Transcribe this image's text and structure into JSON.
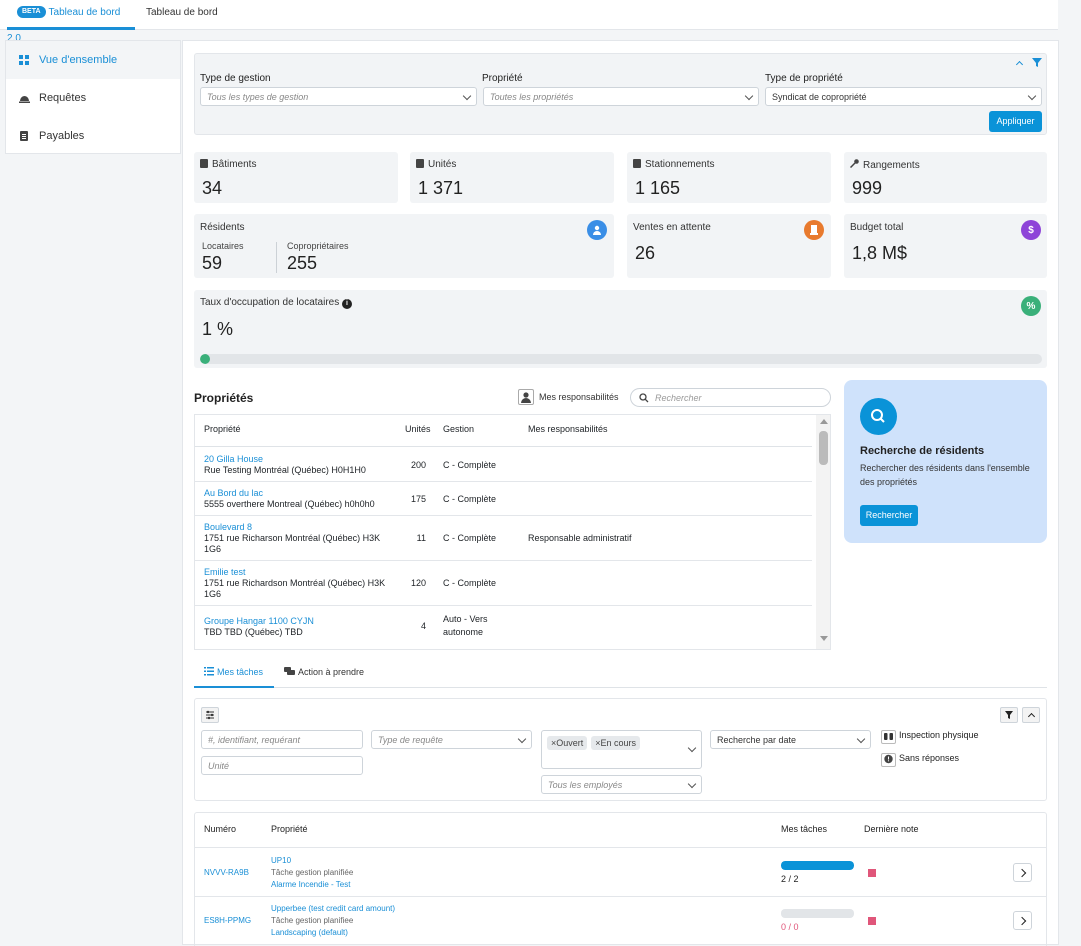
{
  "tabs": [
    {
      "badge": "BETA",
      "label": "Tableau de bord 2.0"
    },
    {
      "label": "Tableau de bord"
    }
  ],
  "sidebar": {
    "items": [
      {
        "label": "Vue d'ensemble",
        "icon": "grid-icon"
      },
      {
        "label": "Requêtes",
        "icon": "bell-icon"
      },
      {
        "label": "Payables",
        "icon": "document-icon"
      }
    ]
  },
  "filters": {
    "gestion_label": "Type de gestion",
    "gestion_placeholder": "Tous les types de gestion",
    "propriete_label": "Propriété",
    "propriete_placeholder": "Toutes les propriétés",
    "type_label": "Type de propriété",
    "type_value": "Syndicat de copropriété",
    "apply_label": "Appliquer"
  },
  "stats": {
    "batiments": {
      "label": "Bâtiments",
      "value": "34"
    },
    "unites": {
      "label": "Unités",
      "value": "1 371"
    },
    "stationnements": {
      "label": "Stationnements",
      "value": "1 165"
    },
    "rangements": {
      "label": "Rangements",
      "value": "999"
    },
    "residents": {
      "label": "Résidents",
      "locataires_label": "Locataires",
      "locataires_value": "59",
      "coproprietaires_label": "Copropriétaires",
      "coproprietaires_value": "255"
    },
    "ventes": {
      "label": "Ventes en attente",
      "value": "26"
    },
    "budget": {
      "label": "Budget total",
      "value": "1,8 M$",
      "icon_text": "$"
    },
    "taux": {
      "label": "Taux d'occupation de locataires",
      "value": "1 %",
      "icon_text": "%",
      "progress": 1
    }
  },
  "proprietes": {
    "title": "Propriétés",
    "mes_resp_label": "Mes responsabilités",
    "search_placeholder": "Rechercher",
    "columns": [
      "Propriété",
      "Unités",
      "Gestion",
      "Mes responsabilités"
    ],
    "rows": [
      {
        "name": "20 Gilla House",
        "address": "Rue Testing Montréal (Québec) H0H1H0",
        "unites": "200",
        "gestion": "C - Complète",
        "resp": ""
      },
      {
        "name": "Au Bord du lac",
        "address": "5555 overthere Montreal (Québec) h0h0h0",
        "unites": "175",
        "gestion": "C - Complète",
        "resp": ""
      },
      {
        "name": "Boulevard 8",
        "address": "1751 rue Richarson Montréal (Québec) H3K 1G6",
        "unites": "11",
        "gestion": "C - Complète",
        "resp": "Responsable administratif"
      },
      {
        "name": "Emilie test",
        "address": "1751 rue Richardson Montréal (Québec) H3K 1G6",
        "unites": "120",
        "gestion": "C - Complète",
        "resp": ""
      },
      {
        "name": "Groupe Hangar 1100 CYJN",
        "address": "TBD TBD (Québec) TBD",
        "unites": "4",
        "gestion": "Auto - Vers autonome",
        "resp": ""
      }
    ]
  },
  "recherche": {
    "title": "Recherche de résidents",
    "description": "Rechercher des résidents dans l'ensemble des propriétés",
    "button": "Rechercher"
  },
  "task_tabs": [
    {
      "label": "Mes tâches",
      "icon": "list-icon"
    },
    {
      "label": "Action à prendre",
      "icon": "chat-icon"
    }
  ],
  "task_filters": {
    "search_placeholder": "#, identifiant, requérant",
    "unite_placeholder": "Unité",
    "type_placeholder": "Type de requête",
    "statuses": [
      "×Ouvert",
      "×En cours"
    ],
    "employes_placeholder": "Tous les employés",
    "date_placeholder": "Recherche par date",
    "inspection_label": "Inspection physique",
    "sans_reponses_label": "Sans réponses"
  },
  "tasks": {
    "columns": [
      "Numéro",
      "Propriété",
      "Mes tâches",
      "Dernière note"
    ],
    "rows": [
      {
        "numero": "NVVV-RA9B",
        "propriete": "UP10",
        "type": "Tâche gestion planifiée",
        "sub": "Alarme Incendie - Test",
        "progress_text": "2 / 2",
        "progress": 1.0,
        "status_color": "#e0567a"
      },
      {
        "numero": "ES8H-PPMG",
        "propriete": "Upperbee (test credit card amount)",
        "type": "Tâche gestion planifiee",
        "sub": "Landscaping (default)",
        "progress_text": "0 / 0",
        "progress": 0.0,
        "status_color": "#e0567a"
      }
    ]
  },
  "colors": {
    "accent": "#1a8fd6",
    "residents": "#3a8ee6",
    "ventes": "#e87a2e",
    "budget": "#8e44d8",
    "taux": "#3ab07a"
  }
}
